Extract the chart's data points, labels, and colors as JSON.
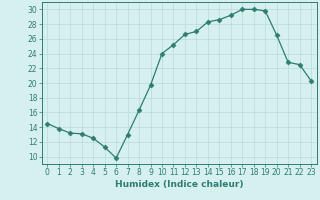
{
  "x": [
    0,
    1,
    2,
    3,
    4,
    5,
    6,
    7,
    8,
    9,
    10,
    11,
    12,
    13,
    14,
    15,
    16,
    17,
    18,
    19,
    20,
    21,
    22,
    23
  ],
  "y": [
    14.5,
    13.8,
    13.2,
    13.1,
    12.5,
    11.3,
    9.8,
    13.0,
    16.3,
    19.7,
    24.0,
    25.2,
    26.6,
    27.0,
    28.3,
    28.6,
    29.2,
    30.0,
    30.0,
    29.8,
    26.5,
    22.8,
    22.5,
    20.3
  ],
  "line_color": "#2e7d6e",
  "marker": "D",
  "marker_size": 2.5,
  "bg_color": "#d6f0f0",
  "grid_color": "#b8dada",
  "xlabel": "Humidex (Indice chaleur)",
  "xlim": [
    -0.5,
    23.5
  ],
  "ylim": [
    9,
    31
  ],
  "xticks": [
    0,
    1,
    2,
    3,
    4,
    5,
    6,
    7,
    8,
    9,
    10,
    11,
    12,
    13,
    14,
    15,
    16,
    17,
    18,
    19,
    20,
    21,
    22,
    23
  ],
  "yticks": [
    10,
    12,
    14,
    16,
    18,
    20,
    22,
    24,
    26,
    28,
    30
  ],
  "xlabel_fontsize": 6.5,
  "tick_fontsize": 5.5,
  "linewidth": 0.9
}
